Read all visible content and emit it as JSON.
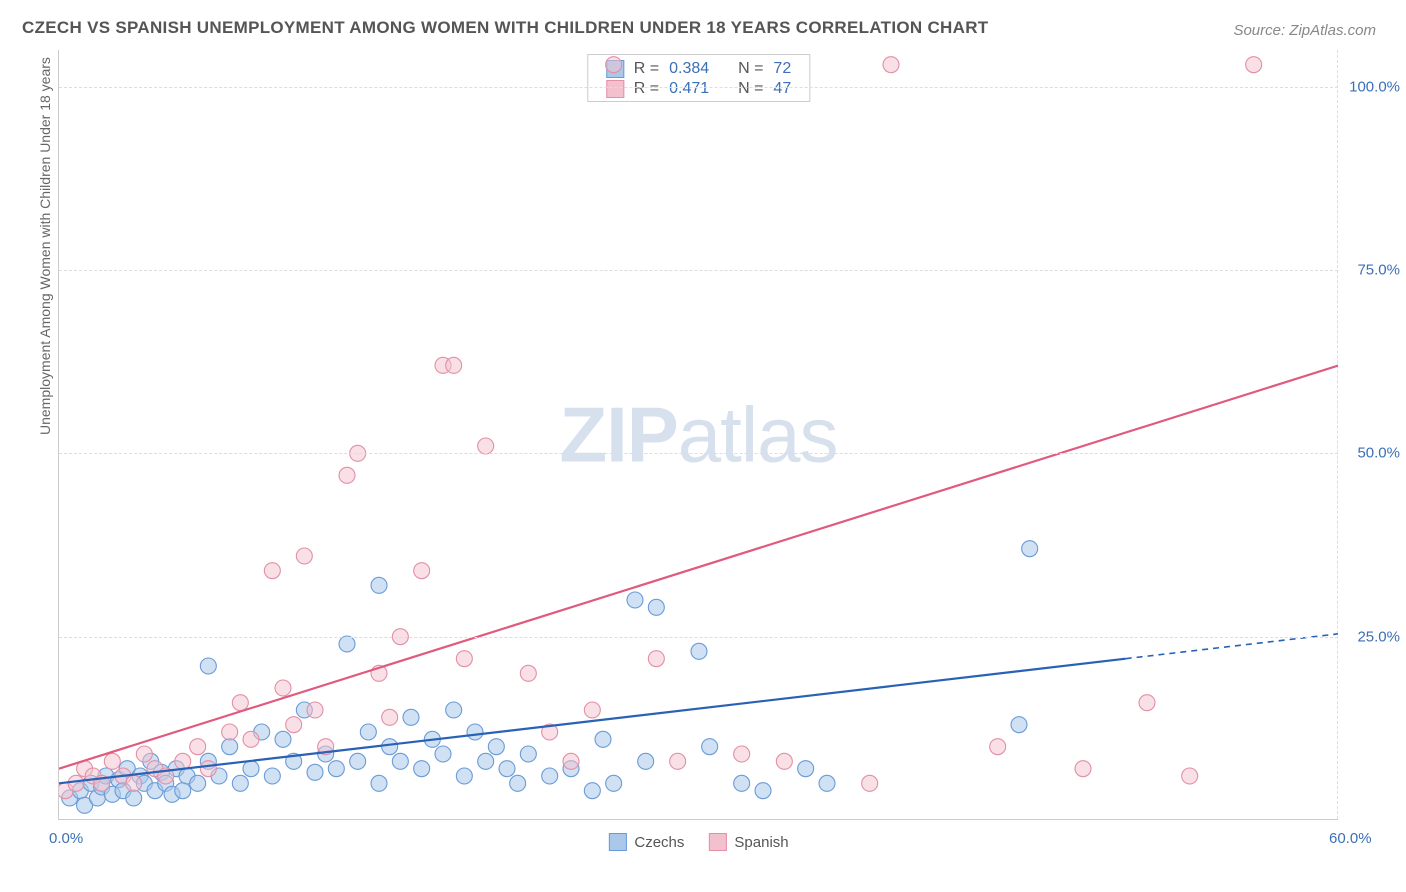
{
  "title": "CZECH VS SPANISH UNEMPLOYMENT AMONG WOMEN WITH CHILDREN UNDER 18 YEARS CORRELATION CHART",
  "source": "Source: ZipAtlas.com",
  "watermark_bold": "ZIP",
  "watermark_light": "atlas",
  "chart": {
    "type": "scatter",
    "xlim": [
      0,
      60
    ],
    "ylim": [
      0,
      105
    ],
    "x_ticks": [
      {
        "v": 0,
        "label": "0.0%"
      },
      {
        "v": 60,
        "label": "60.0%"
      }
    ],
    "y_ticks": [
      {
        "v": 25,
        "label": "25.0%"
      },
      {
        "v": 50,
        "label": "50.0%"
      },
      {
        "v": 75,
        "label": "75.0%"
      },
      {
        "v": 100,
        "label": "100.0%"
      }
    ],
    "y_axis_label": "Unemployment Among Women with Children Under 18 years",
    "grid_color": "#dddddd",
    "background_color": "#ffffff",
    "marker_radius": 8,
    "marker_stroke_width": 1.1,
    "series": [
      {
        "name": "Czechs",
        "fill": "#aac8ea",
        "stroke": "#6a9bd8",
        "fill_opacity": 0.55,
        "r_value": "0.384",
        "n_value": "72",
        "trend": {
          "x1": 0,
          "y1": 5,
          "x2": 50,
          "y2": 22,
          "color": "#2861b5",
          "dash_extend": true
        },
        "points": [
          [
            0.5,
            3
          ],
          [
            1,
            4
          ],
          [
            1.2,
            2
          ],
          [
            1.5,
            5
          ],
          [
            1.8,
            3
          ],
          [
            2,
            4.5
          ],
          [
            2.2,
            6
          ],
          [
            2.5,
            3.5
          ],
          [
            2.8,
            5.5
          ],
          [
            3,
            4
          ],
          [
            3.2,
            7
          ],
          [
            3.5,
            3
          ],
          [
            3.8,
            6
          ],
          [
            4,
            5
          ],
          [
            4.3,
            8
          ],
          [
            4.5,
            4
          ],
          [
            4.8,
            6.5
          ],
          [
            5,
            5
          ],
          [
            5.3,
            3.5
          ],
          [
            5.5,
            7
          ],
          [
            5.8,
            4
          ],
          [
            6,
            6
          ],
          [
            6.5,
            5
          ],
          [
            7,
            8
          ],
          [
            7,
            21
          ],
          [
            7.5,
            6
          ],
          [
            8,
            10
          ],
          [
            8.5,
            5
          ],
          [
            9,
            7
          ],
          [
            9.5,
            12
          ],
          [
            10,
            6
          ],
          [
            10.5,
            11
          ],
          [
            11,
            8
          ],
          [
            11.5,
            15
          ],
          [
            12,
            6.5
          ],
          [
            12.5,
            9
          ],
          [
            13,
            7
          ],
          [
            13.5,
            24
          ],
          [
            14,
            8
          ],
          [
            14.5,
            12
          ],
          [
            15,
            32
          ],
          [
            15,
            5
          ],
          [
            15.5,
            10
          ],
          [
            16,
            8
          ],
          [
            16.5,
            14
          ],
          [
            17,
            7
          ],
          [
            17.5,
            11
          ],
          [
            18,
            9
          ],
          [
            18.5,
            15
          ],
          [
            19,
            6
          ],
          [
            19.5,
            12
          ],
          [
            20,
            8
          ],
          [
            20.5,
            10
          ],
          [
            21,
            7
          ],
          [
            21.5,
            5
          ],
          [
            22,
            9
          ],
          [
            23,
            6
          ],
          [
            24,
            7
          ],
          [
            25,
            4
          ],
          [
            25.5,
            11
          ],
          [
            26,
            5
          ],
          [
            27,
            30
          ],
          [
            27.5,
            8
          ],
          [
            28,
            29
          ],
          [
            30,
            23
          ],
          [
            30.5,
            10
          ],
          [
            32,
            5
          ],
          [
            33,
            4
          ],
          [
            35,
            7
          ],
          [
            36,
            5
          ],
          [
            45,
            13
          ],
          [
            45.5,
            37
          ]
        ]
      },
      {
        "name": "Spanish",
        "fill": "#f3c1cd",
        "stroke": "#e38fa6",
        "fill_opacity": 0.5,
        "r_value": "0.471",
        "n_value": "47",
        "trend": {
          "x1": 0,
          "y1": 7,
          "x2": 60,
          "y2": 62,
          "color": "#e05a7d",
          "dash_extend": false
        },
        "points": [
          [
            0.3,
            4
          ],
          [
            0.8,
            5
          ],
          [
            1.2,
            7
          ],
          [
            1.6,
            6
          ],
          [
            2,
            5
          ],
          [
            2.5,
            8
          ],
          [
            3,
            6
          ],
          [
            3.5,
            5
          ],
          [
            4,
            9
          ],
          [
            4.5,
            7
          ],
          [
            5,
            6
          ],
          [
            5.8,
            8
          ],
          [
            6.5,
            10
          ],
          [
            7,
            7
          ],
          [
            8,
            12
          ],
          [
            8.5,
            16
          ],
          [
            9,
            11
          ],
          [
            10,
            34
          ],
          [
            10.5,
            18
          ],
          [
            11,
            13
          ],
          [
            11.5,
            36
          ],
          [
            12,
            15
          ],
          [
            12.5,
            10
          ],
          [
            13.5,
            47
          ],
          [
            14,
            50
          ],
          [
            15,
            20
          ],
          [
            15.5,
            14
          ],
          [
            16,
            25
          ],
          [
            17,
            34
          ],
          [
            18,
            62
          ],
          [
            18.5,
            62
          ],
          [
            19,
            22
          ],
          [
            20,
            51
          ],
          [
            22,
            20
          ],
          [
            23,
            12
          ],
          [
            24,
            8
          ],
          [
            25,
            15
          ],
          [
            28,
            22
          ],
          [
            29,
            8
          ],
          [
            32,
            9
          ],
          [
            34,
            8
          ],
          [
            38,
            5
          ],
          [
            44,
            10
          ],
          [
            48,
            7
          ],
          [
            51,
            16
          ],
          [
            53,
            6
          ],
          [
            56,
            103
          ]
        ]
      }
    ],
    "extra_pink_top": [
      [
        26,
        103
      ],
      [
        39,
        103
      ]
    ]
  },
  "legend_top_labels": {
    "R": "R =",
    "N": "N ="
  },
  "legend_bottom": [
    {
      "label": "Czechs",
      "fill": "#aac8ea",
      "stroke": "#6a9bd8"
    },
    {
      "label": "Spanish",
      "fill": "#f3c1cd",
      "stroke": "#e38fa6"
    }
  ]
}
